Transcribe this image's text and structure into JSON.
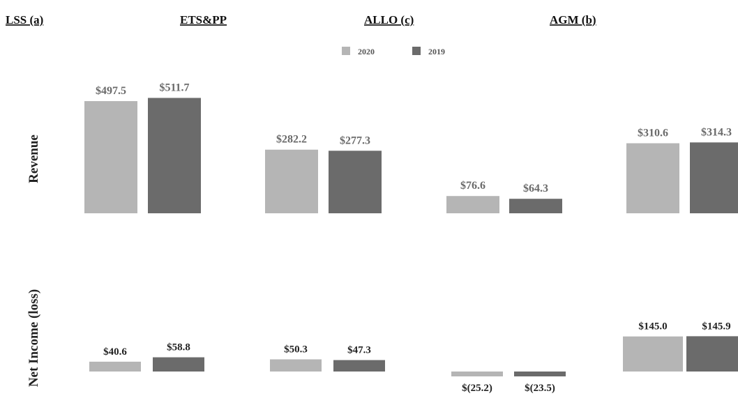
{
  "chart_data": {
    "type": "bar",
    "categories": [
      "LSS (a)",
      "ETS&PP",
      "ALLO (c)",
      "AGM (b)"
    ],
    "legend": [
      {
        "name": "2020",
        "color": "#b5b5b5"
      },
      {
        "name": "2019",
        "color": "#6b6b6b"
      }
    ],
    "legend_position": "top-center",
    "grid": false,
    "panels": [
      {
        "label": "Revenue",
        "ylim": [
          0,
          530
        ],
        "series": [
          {
            "name": "2020",
            "values": [
              497.5,
              282.2,
              76.6,
              310.6
            ],
            "labels": [
              "$497.5",
              "$282.2",
              "$76.6",
              "$310.6"
            ]
          },
          {
            "name": "2019",
            "values": [
              511.7,
              277.3,
              64.3,
              314.3
            ],
            "labels": [
              "$511.7",
              "$277.3",
              "$64.3",
              "$314.3"
            ]
          }
        ]
      },
      {
        "label": "Net Income (loss)",
        "ylim": [
          -30,
          150
        ],
        "series": [
          {
            "name": "2020",
            "values": [
              40.6,
              50.3,
              -25.2,
              145.0
            ],
            "labels": [
              "$40.6",
              "$50.3",
              "$(25.2)",
              "$145.0"
            ]
          },
          {
            "name": "2019",
            "values": [
              58.8,
              47.3,
              -23.5,
              145.9
            ],
            "labels": [
              "$58.8",
              "$47.3",
              "$(23.5)",
              "$145.9"
            ]
          }
        ]
      }
    ]
  }
}
